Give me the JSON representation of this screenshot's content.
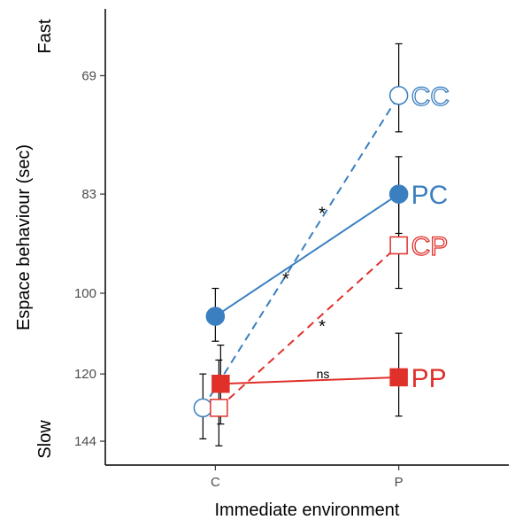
{
  "chart_data": {
    "type": "line",
    "xlabel": "Immediate environment",
    "ylabel": "Espace behaviour (sec)",
    "y_fast_label": "Fast",
    "y_slow_label": "Slow",
    "categories": [
      "C",
      "P"
    ],
    "y_ticks": [
      69,
      83,
      100,
      120,
      144
    ],
    "ylim": [
      155,
      63
    ],
    "y_scale": "reciprocal",
    "grid": false,
    "series": [
      {
        "name": "CC",
        "marker": "circle",
        "filled": false,
        "linestyle": "dashed",
        "color": "#3a7fc0",
        "values": [
          131,
          71
        ],
        "err": [
          [
            143,
            120
          ],
          [
            75,
            66
          ]
        ]
      },
      {
        "name": "PC",
        "marker": "circle",
        "filled": true,
        "linestyle": "solid",
        "color": "#3a7fc0",
        "values": [
          105,
          83
        ],
        "err": [
          [
            111,
            99
          ],
          [
            89,
            78
          ]
        ]
      },
      {
        "name": "CP",
        "marker": "square",
        "filled": false,
        "linestyle": "dashed",
        "color": "#e0302a",
        "values": [
          131,
          91
        ],
        "err": [
          [
            146,
            116
          ],
          [
            99,
            83
          ]
        ]
      },
      {
        "name": "PP",
        "marker": "square",
        "filled": true,
        "linestyle": "solid",
        "color": "#e0302a",
        "values": [
          123,
          121
        ],
        "err": [
          [
            137,
            112
          ],
          [
            134,
            109
          ]
        ]
      }
    ],
    "annotations": [
      {
        "text": "*",
        "between": [
          "C",
          "P"
        ],
        "y": 85
      },
      {
        "text": "*",
        "between": [
          "C",
          "P"
        ],
        "y": 96
      },
      {
        "text": "*",
        "between": [
          "C",
          "P"
        ],
        "y": 106
      },
      {
        "text": "ns",
        "between": [
          "C",
          "P"
        ],
        "y": 120
      }
    ]
  }
}
